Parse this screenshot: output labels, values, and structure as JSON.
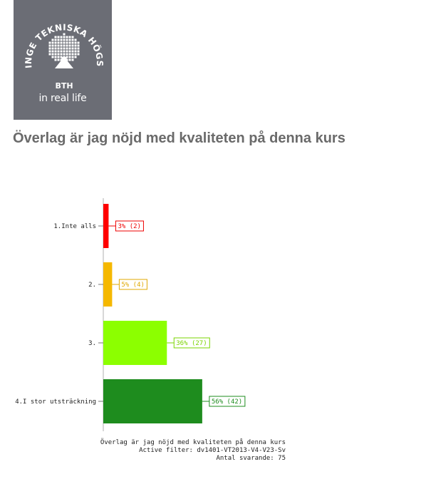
{
  "logo": {
    "arc_text": "BLEKINGE TEKNISKA HÖGSKOLA",
    "abbrev": "BTH",
    "tagline": "in real life"
  },
  "heading": "Överlag är jag nöjd med kvaliteten på denna kurs",
  "chart_data": {
    "type": "bar",
    "orientation": "horizontal",
    "categories": [
      "1.Inte alls",
      "2.",
      "3.",
      "4.I stor utsträckning"
    ],
    "values": [
      3,
      5,
      36,
      56
    ],
    "counts": [
      2,
      4,
      27,
      42
    ],
    "labels": [
      "3% (2)",
      "5% (4)",
      "36% (27)",
      "56% (42)"
    ],
    "colors": [
      "#ff0000",
      "#f5b800",
      "#8cff00",
      "#1e8c1e"
    ],
    "label_colors": [
      "#ee0000",
      "#e0a800",
      "#7ad400",
      "#1e8c1e"
    ],
    "xlim": [
      0,
      100
    ],
    "grid": false
  },
  "footer": {
    "title": "Överlag är jag nöjd med kvaliteten på denna kurs",
    "filter": "Active filter: dv1401-VT2013-V4-V23-Sv",
    "respondents": "Antal svarande: 75"
  }
}
